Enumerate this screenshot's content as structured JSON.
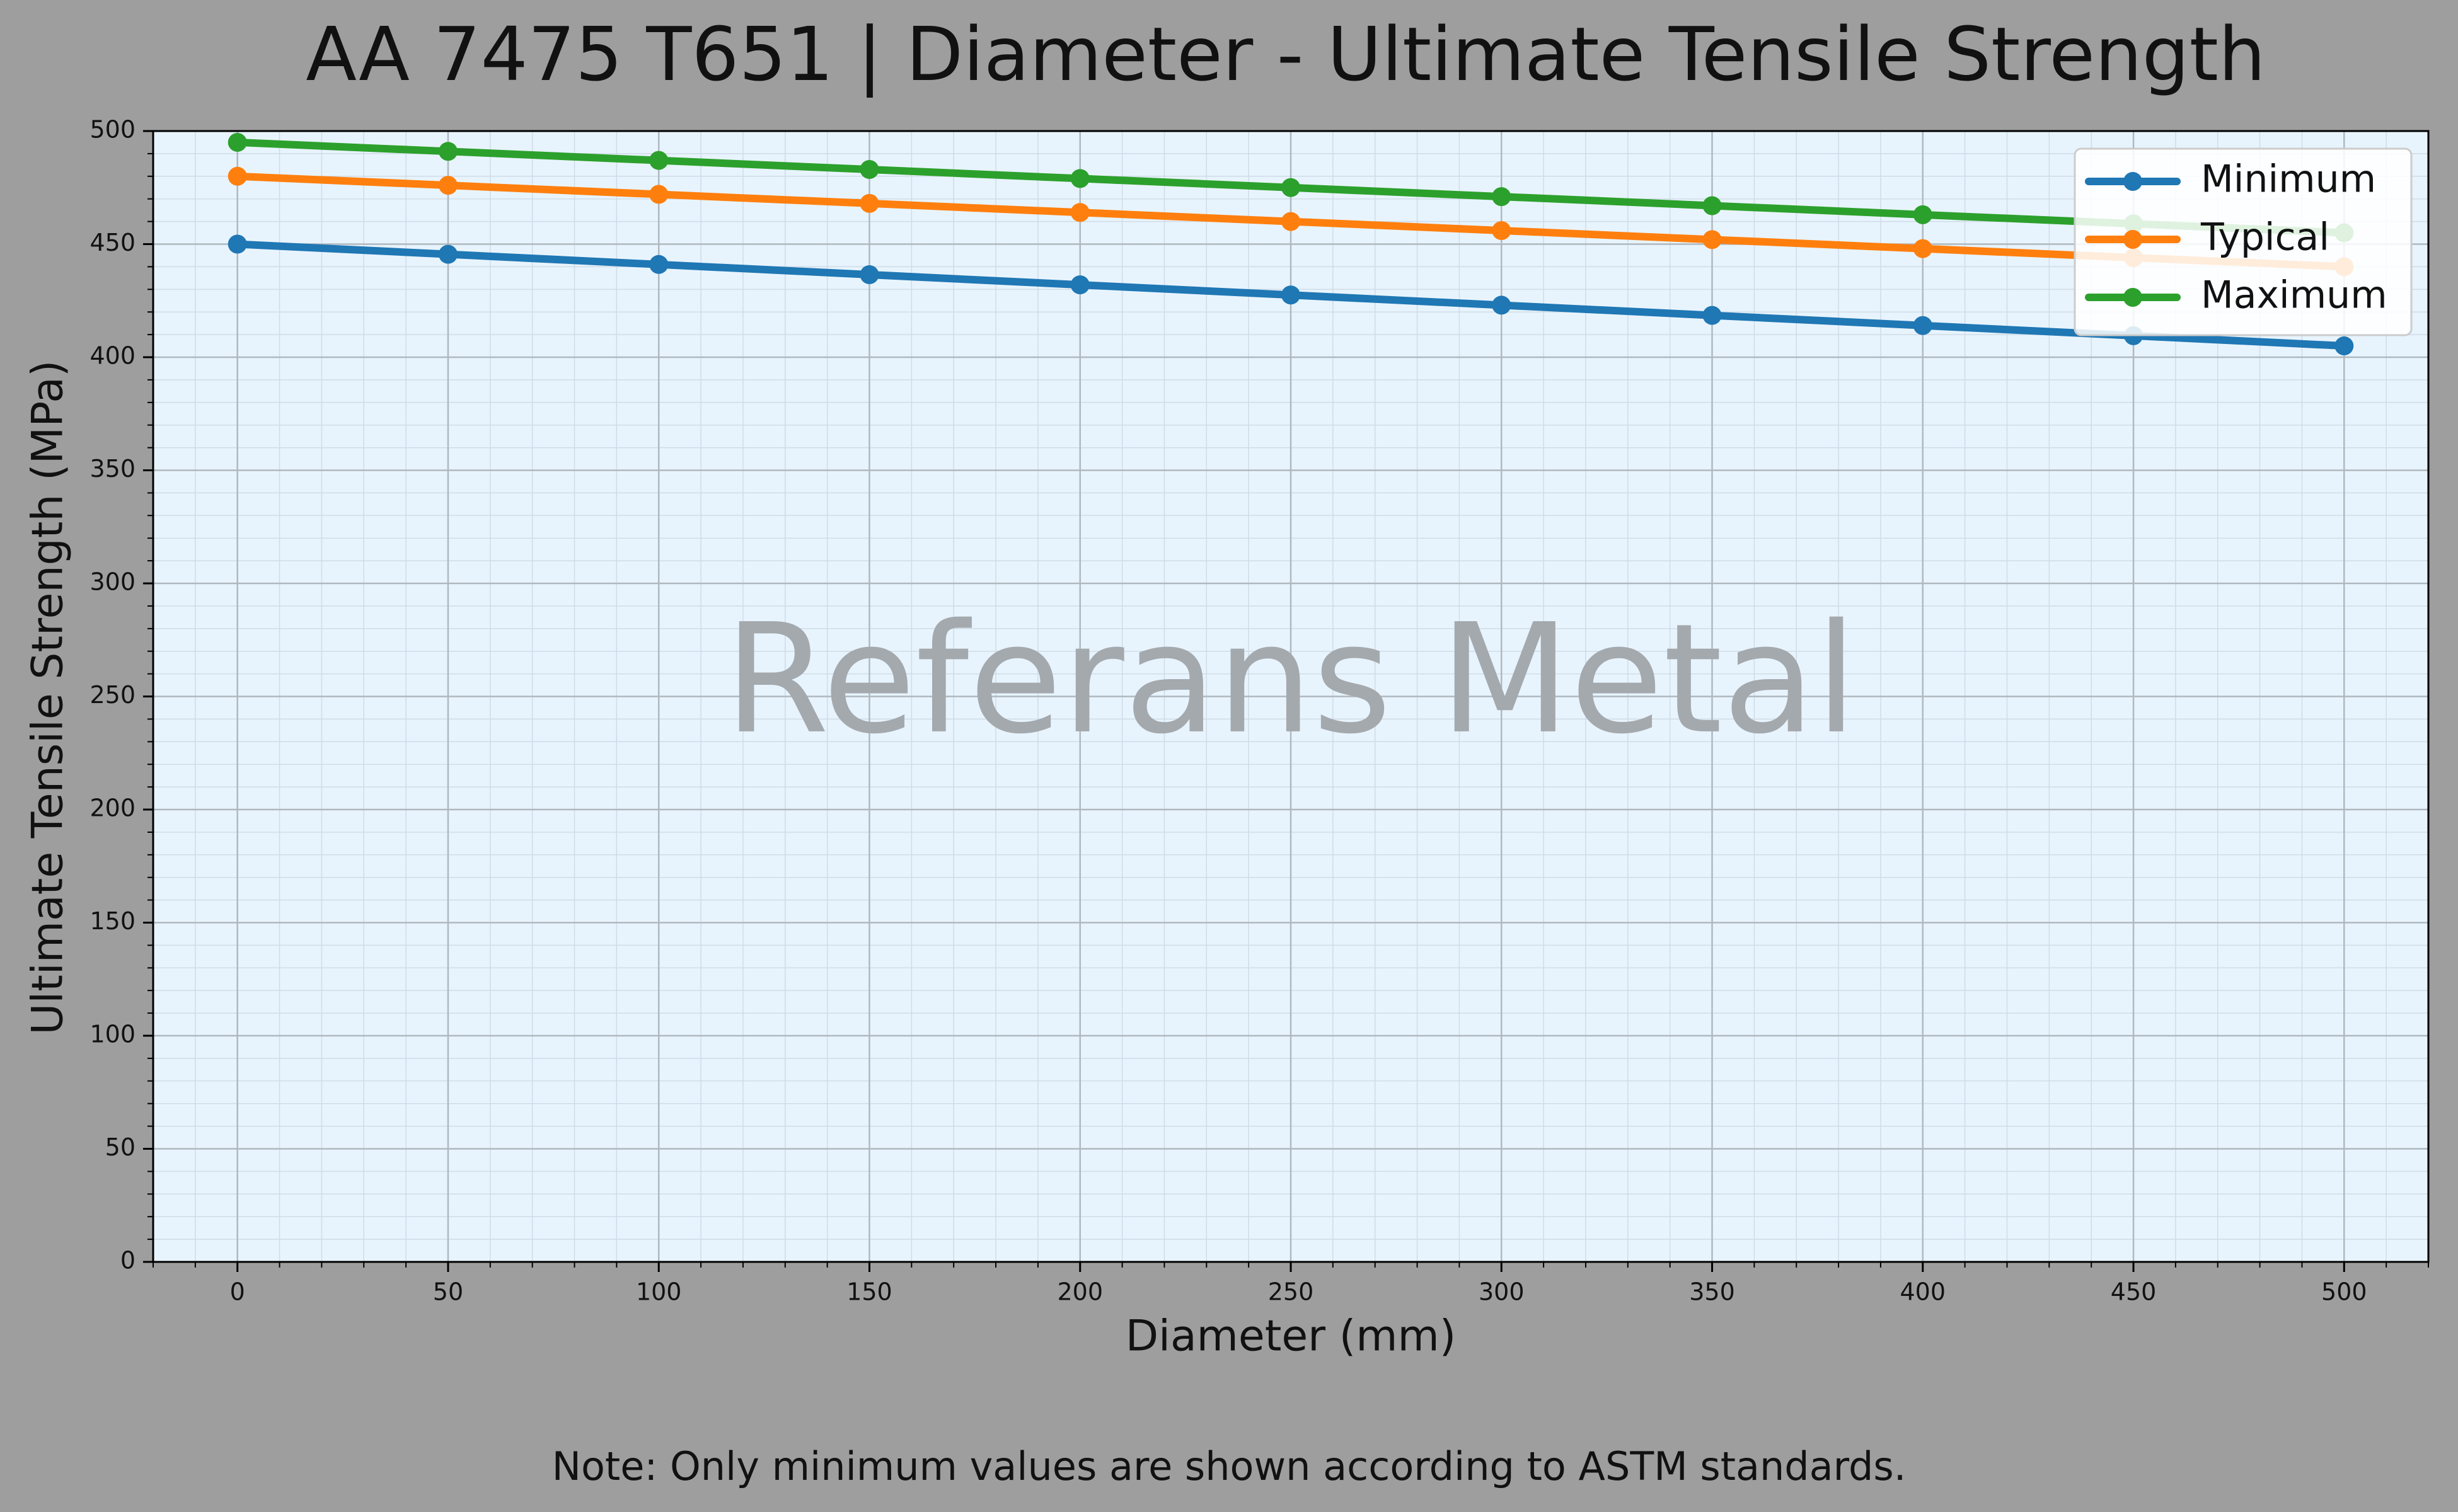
{
  "chart_data": {
    "type": "line",
    "title": "AA 7475 T651 | Diameter - Ultimate Tensile Strength",
    "xlabel": "Diameter (mm)",
    "ylabel": "Ultimate Tensile Strength (MPa)",
    "xlim": [
      -20,
      520
    ],
    "ylim": [
      0,
      500
    ],
    "x_ticks": [
      0,
      50,
      100,
      150,
      200,
      250,
      300,
      350,
      400,
      450,
      500
    ],
    "y_ticks": [
      0,
      50,
      100,
      150,
      200,
      250,
      300,
      350,
      400,
      450,
      500
    ],
    "grid": true,
    "legend_position": "top-right",
    "x": [
      0,
      50,
      100,
      150,
      200,
      250,
      300,
      350,
      400,
      450,
      500
    ],
    "series": [
      {
        "name": "Minimum",
        "color": "#1f77b4",
        "values": [
          450,
          445.5,
          441,
          436.5,
          432,
          427.5,
          423,
          418.5,
          414,
          409.5,
          405
        ]
      },
      {
        "name": "Typical",
        "color": "#ff7f0e",
        "values": [
          480,
          476,
          472,
          468,
          464,
          460,
          456,
          452,
          448,
          444,
          440
        ]
      },
      {
        "name": "Maximum",
        "color": "#2ca02c",
        "values": [
          495,
          491,
          487,
          483,
          479,
          475,
          471,
          467,
          463,
          459,
          455
        ]
      }
    ],
    "watermark": "Referans Metal",
    "note": "Note: Only minimum values are shown according to ASTM standards."
  },
  "colors": {
    "page_background": "#9e9e9e",
    "plot_background": "#e8f4fd",
    "grid_major": "#b0b8bf",
    "grid_minor": "#cfdbe6",
    "watermark": "#a4a9ae"
  }
}
